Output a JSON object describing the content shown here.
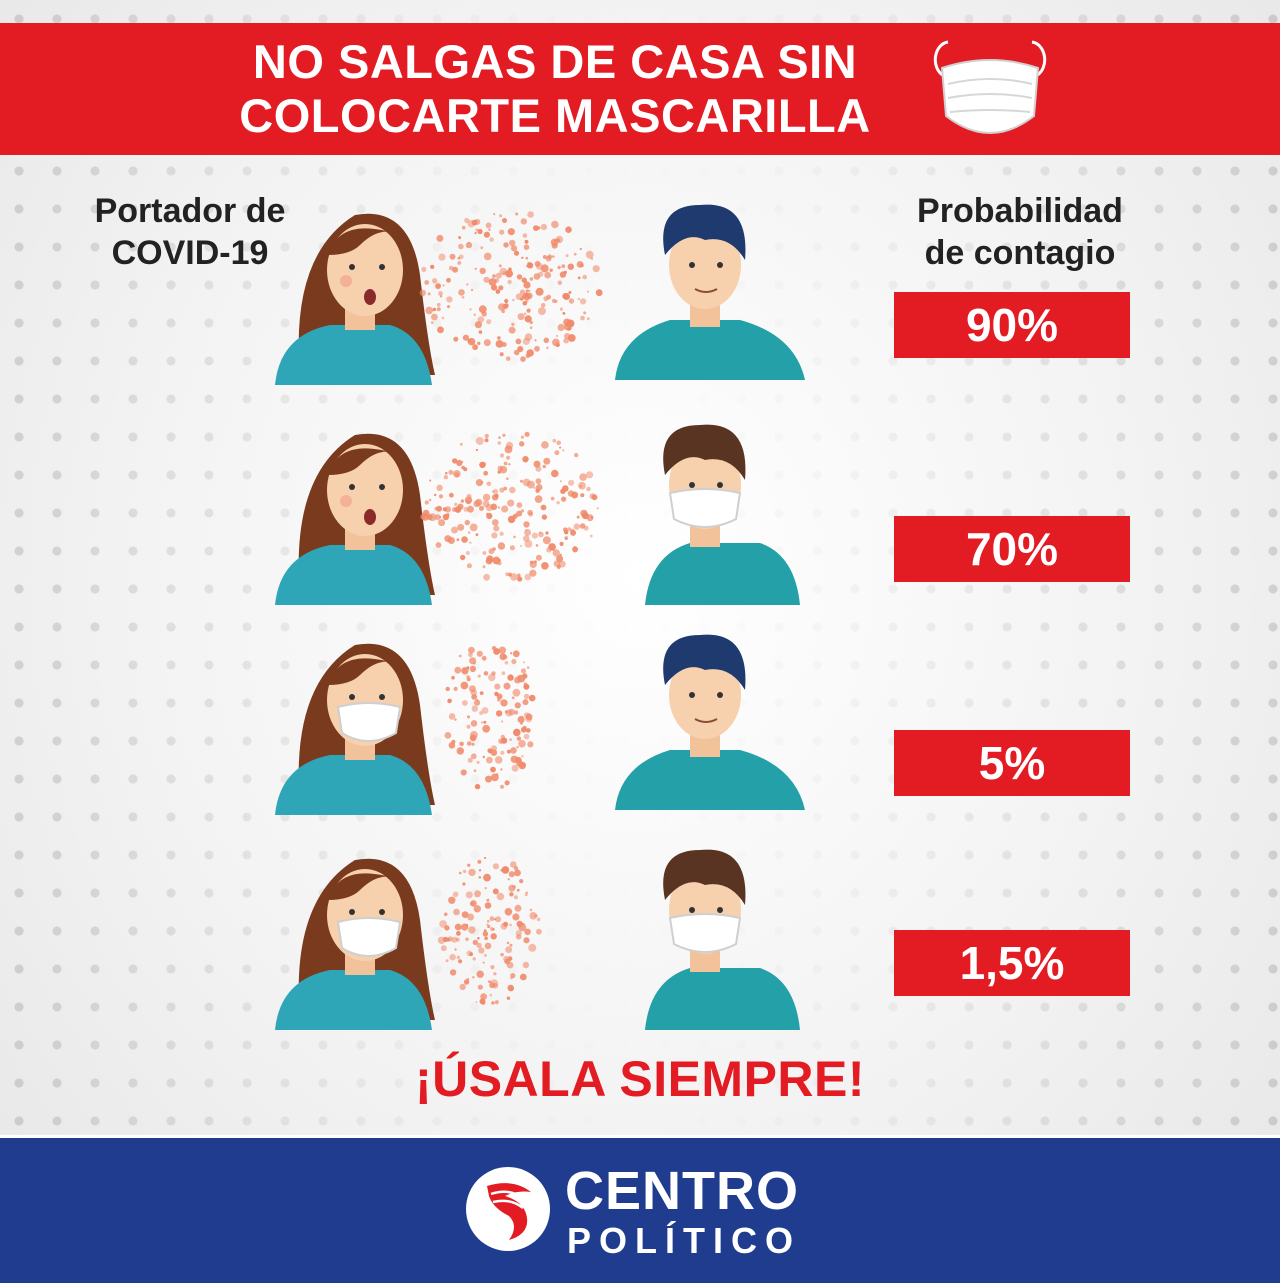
{
  "banner": {
    "title": "NO SALGAS DE CASA SIN\nCOLOCARTE MASCARILLA",
    "icon": "face-mask-icon"
  },
  "columns": {
    "left_header": "Portador de\nCOVID-19",
    "right_header": "Probabilidad\nde contagio"
  },
  "rows": [
    {
      "carrier_mask": false,
      "receiver_mask": false,
      "probability": "90%"
    },
    {
      "carrier_mask": false,
      "receiver_mask": true,
      "probability": "70%"
    },
    {
      "carrier_mask": true,
      "receiver_mask": false,
      "probability": "5%"
    },
    {
      "carrier_mask": true,
      "receiver_mask": true,
      "probability": "1,5%"
    }
  ],
  "slogan": "¡ÚSALA SIEMPRE!",
  "footer": {
    "logo_line1": "CENTRO",
    "logo_line2": "POLÍTICO"
  },
  "colors": {
    "accent_red": "#e31b23",
    "footer_blue": "#1f3c8f",
    "shirt_teal": "#2fa6b8",
    "droplet": "#f08a6a"
  }
}
